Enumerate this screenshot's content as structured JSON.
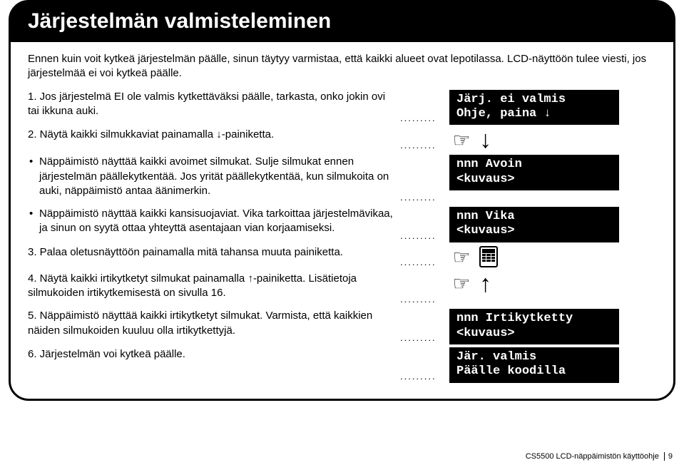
{
  "title": "Järjestelmän valmisteleminen",
  "intro": "Ennen kuin voit kytkeä järjestelmän päälle, sinun täytyy varmistaa, että kaikki alueet ovat lepotilassa. LCD-näyttöön tulee viesti, jos järjestelmää ei voi kytkeä päälle.",
  "steps": {
    "s1": "1.  Jos järjestelmä EI ole valmis kytkettäväksi päälle, tarkasta, onko jokin ovi tai ikkuna auki.",
    "s2_pre": "2.  Näytä kaikki silmukkaviat painamalla ",
    "s2_post": "-painiketta.",
    "b1": "Näppäimistö näyttää kaikki avoimet silmukat. Sulje silmukat ennen järjestelmän päällekytkentää. Jos yrität päällekytkentää, kun silmukoita on auki, näppäimistö antaa äänimerkin.",
    "b2": "Näppäimistö näyttää kaikki kansisuojaviat. Vika tarkoittaa järjestelmävikaa, ja sinun on syytä ottaa yhteyttä asentajaan vian korjaamiseksi.",
    "s3": "3.  Palaa oletusnäyttöön painamalla mitä tahansa muuta painiketta.",
    "s4_pre": "4.  Näytä kaikki irtikytketyt silmukat painamalla ",
    "s4_post": "-painiketta. Lisätietoja silmukoiden irtikytkemisestä on sivulla 16.",
    "s5": "5.  Näppäimistö näyttää kaikki irtikytketyt silmukat. Varmista, että kaikkien näiden silmukoiden kuuluu olla irtikytkettyjä.",
    "s6": "6.  Järjestelmän voi kytkeä päälle."
  },
  "displays": {
    "d1a": "Järj. ei valmis",
    "d1b": "Ohje, paina ↓",
    "d2a": "nnn Avoin",
    "d2b": "<kuvaus>",
    "d3a": "nnn Vika",
    "d3b": "<kuvaus>",
    "d4a": "nnn Irtikytketty",
    "d4b": "<kuvaus>",
    "d5a": "Jär. valmis",
    "d5b": "Päälle koodilla"
  },
  "footer": {
    "label": "CS5500 LCD-näppäimistön käyttöohje",
    "page": "9"
  },
  "dots": "........."
}
